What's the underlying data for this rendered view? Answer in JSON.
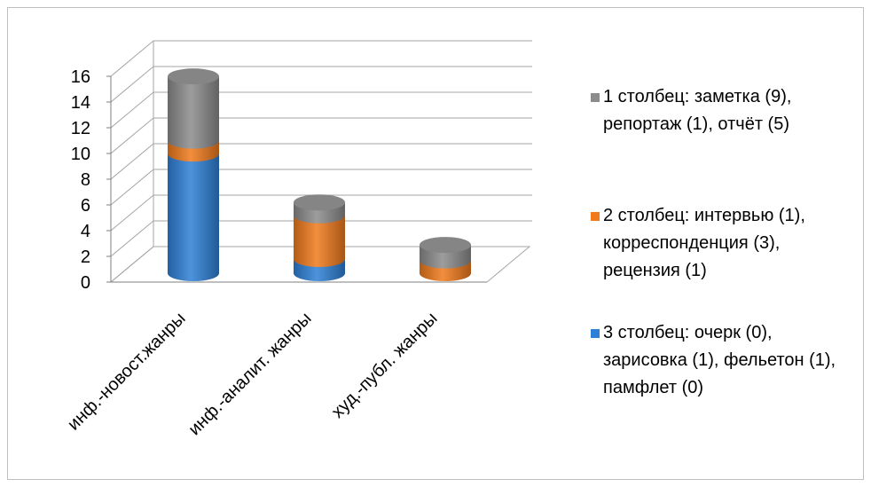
{
  "chart_data": {
    "type": "bar",
    "categories": [
      "инф.-новост.жанры",
      "инф.-аналит. жанры",
      "худ.-публ. жанры"
    ],
    "series": [
      {
        "name": "3 столбец: очерк (0), зарисовка (1), фельетон (1), памфлет (0)",
        "values": [
          9.3,
          1.1,
          0.0
        ],
        "color": "#2e80d6"
      },
      {
        "name": "2 столбец: интервью (1), корреспонденция (3), рецензия (1)",
        "values": [
          1.0,
          3.4,
          1.0
        ],
        "color": "#f07a1c"
      },
      {
        "name": "1 столбец: заметка (9), репортаж (1), отчёт (5)",
        "values": [
          5.0,
          1.0,
          1.2
        ],
        "color": "#8c8c8c"
      }
    ],
    "ylim": [
      0,
      16
    ],
    "yticks": [
      0,
      2,
      4,
      6,
      8,
      10,
      12,
      14,
      16
    ],
    "grid": true,
    "legend_position": "right",
    "legend_order": [
      2,
      1,
      0
    ],
    "style": "3d-cylinder-stacked"
  }
}
